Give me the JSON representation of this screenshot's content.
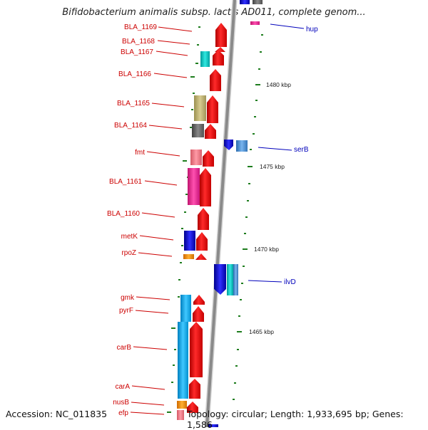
{
  "title": "Bifidobacterium animalis subsp. lactis AD011, complete genom...",
  "footer": {
    "accession": "Accession: NC_011835",
    "summary": "Topology: circular; Length: 1,933,695 bp; Genes: 1,586"
  },
  "colors": {
    "label_left": "#cc0000",
    "label_right": "#0000bb",
    "backbone": "#8a8a8a",
    "tick": "#1e7d1e"
  },
  "scale_ticks": [
    "1480 kbp",
    "1475 kbp",
    "1470 kbp",
    "1465 kbp"
  ],
  "left_labels": [
    "BLA_1169",
    "BLA_1168",
    "BLA_1167",
    "BLA_1166",
    "BLA_1165",
    "BLA_1164",
    "fmt",
    "BLA_1161",
    "BLA_1160",
    "metK",
    "rpoZ",
    "gmk",
    "pyrF",
    "carB",
    "carA",
    "nusB",
    "efp"
  ],
  "right_labels": [
    "hup",
    "serB",
    "ilvD"
  ]
}
